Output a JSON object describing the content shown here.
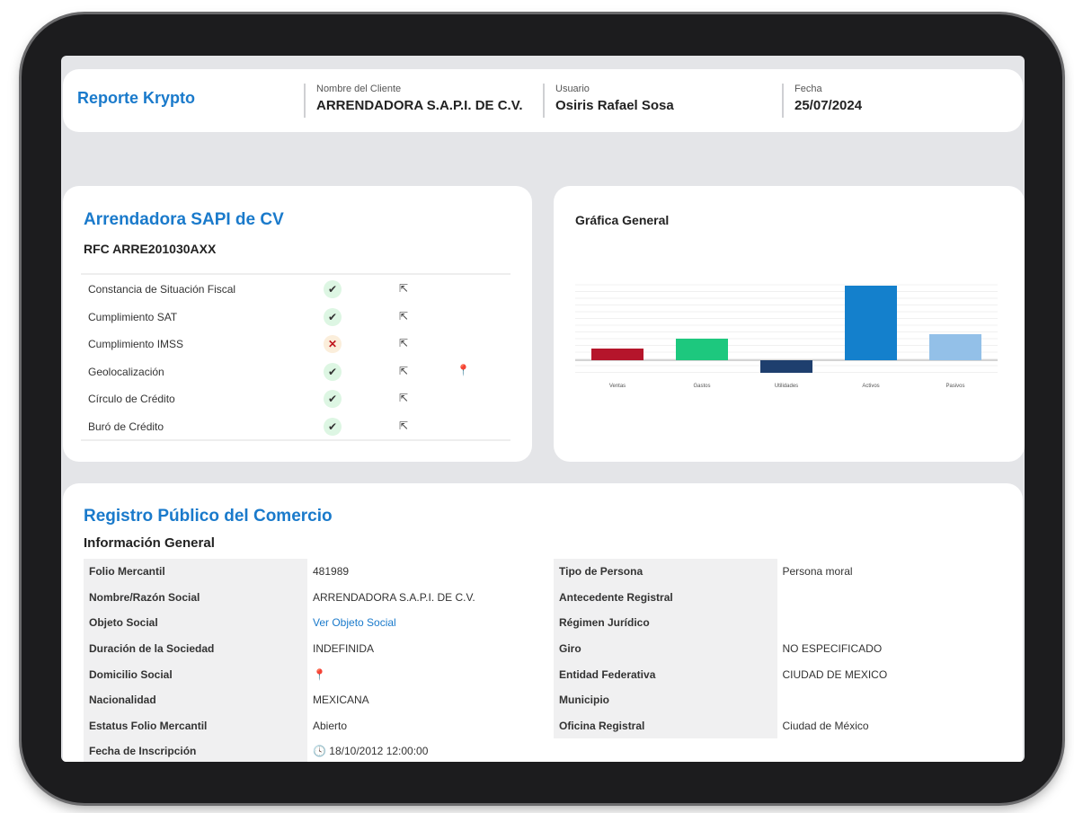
{
  "header": {
    "brand": "Reporte Krypto",
    "fields": [
      {
        "label": "Nombre del Cliente",
        "value": "ARRENDADORA S.A.P.I. DE C.V."
      },
      {
        "label": "Usuario",
        "value": "Osiris Rafael Sosa"
      },
      {
        "label": "Fecha",
        "value": "25/07/2024"
      }
    ]
  },
  "company": {
    "name": "Arrendadora SAPI de CV",
    "rfc": "RFC ARRE201030AXX",
    "checks": [
      {
        "label": "Constancia de Situación Fiscal",
        "status": "ok"
      },
      {
        "label": "Cumplimiento SAT",
        "status": "ok"
      },
      {
        "label": "Cumplimiento IMSS",
        "status": "fail"
      },
      {
        "label": "Geolocalización",
        "status": "ok",
        "location": true
      },
      {
        "label": "Círculo de Crédito",
        "status": "ok"
      },
      {
        "label": "Buró de Crédito",
        "status": "ok"
      }
    ]
  },
  "chart_data": {
    "type": "bar",
    "title": "Gráfica General",
    "categories": [
      "Ventas",
      "Gastos",
      "Utilidades",
      "Activos",
      "Pasivos"
    ],
    "values": [
      13,
      24,
      -14,
      83,
      29
    ],
    "colors": [
      "#b5152b",
      "#1dc87e",
      "#1e3f6e",
      "#1480cc",
      "#93c0e8"
    ],
    "grid": true
  },
  "registro": {
    "title": "Registro Público del Comercio",
    "subtitle": "Información General",
    "left": [
      [
        "Folio Mercantil",
        "481989"
      ],
      [
        "Nombre/Razón Social",
        "ARRENDADORA S.A.P.I. DE C.V."
      ],
      [
        "Objeto Social",
        "Ver Objeto Social"
      ],
      [
        "Duración de la Sociedad",
        "INDEFINIDA"
      ],
      [
        "Domicilio Social",
        ""
      ],
      [
        "Nacionalidad",
        "MEXICANA"
      ],
      [
        "Estatus Folio Mercantil",
        "Abierto"
      ],
      [
        "Fecha de Inscripción",
        "18/10/2012 12:00:00"
      ]
    ],
    "right": [
      [
        "Tipo de Persona",
        "Persona moral"
      ],
      [
        "Antecedente Registral",
        ""
      ],
      [
        "Régimen Jurídico",
        ""
      ],
      [
        "Giro",
        "NO ESPECIFICADO"
      ],
      [
        "Entidad Federativa",
        "CIUDAD DE MEXICO"
      ],
      [
        "Municipio",
        ""
      ],
      [
        "Oficina Registral",
        "Ciudad de México"
      ]
    ]
  }
}
